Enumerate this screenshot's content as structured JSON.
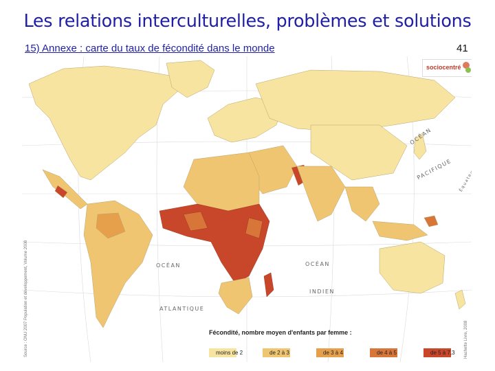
{
  "slide": {
    "title": "Les relations interculturelles, problèmes et solutions",
    "subtitle": "15) Annexe : carte du taux de fécondité dans le monde",
    "page_number": "41"
  },
  "map": {
    "logo_text": "sociocentré",
    "ocean_labels": {
      "pacific_1": "OCÉAN",
      "pacific_2": "PACIFIQUE",
      "atlantic_1": "OCÉAN",
      "atlantic_2": "ATLANTIQUE",
      "indian_1": "OCÉAN",
      "indian_2": "INDIEN",
      "equator": "Équateur"
    },
    "source_note": "Source : ONU 2007 Population et développement, Volume 2008",
    "credit_note": "Hachette Livre, 2008",
    "legend": {
      "title": "Fécondité, nombre moyen d'enfants par femme :",
      "classes": [
        {
          "label": "moins de 2",
          "color": "#f7e4a0"
        },
        {
          "label": "de 2 à 3",
          "color": "#efc571"
        },
        {
          "label": "de 3 à 4",
          "color": "#e6a04c"
        },
        {
          "label": "de 4 à 5",
          "color": "#d8763a"
        },
        {
          "label": "de 5 à 7,3",
          "color": "#c8462a"
        }
      ]
    }
  }
}
